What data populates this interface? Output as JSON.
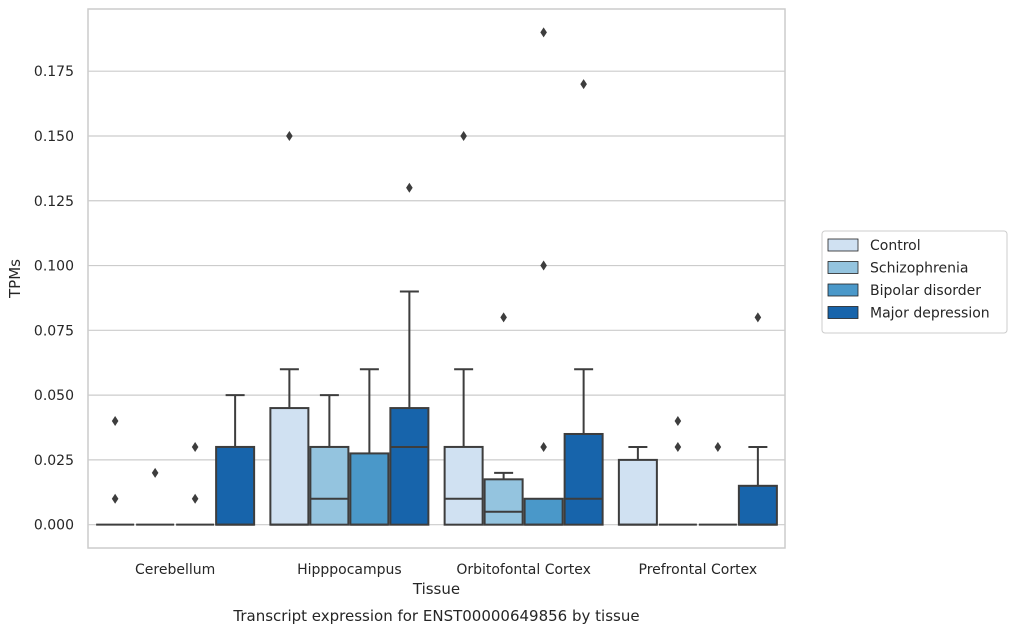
{
  "chart_data": {
    "type": "box",
    "title": "Transcript expression for ENST00000649856 by tissue",
    "xlabel": "Tissue",
    "ylabel": "TPMs",
    "ylim": [
      -0.009,
      0.199
    ],
    "yticks": [
      0.0,
      0.025,
      0.05,
      0.075,
      0.1,
      0.125,
      0.15,
      0.175
    ],
    "ytick_labels": [
      "0.000",
      "0.025",
      "0.050",
      "0.075",
      "0.100",
      "0.125",
      "0.150",
      "0.175"
    ],
    "grid": "horizontal",
    "legend_position": "right",
    "categories": [
      "Cerebellum",
      "Hipppocampus",
      "Orbitofontal Cortex",
      "Prefrontal Cortex"
    ],
    "series": [
      {
        "name": "Control",
        "color": "#d0e1f2",
        "boxes": [
          {
            "q1": 0,
            "median": 0,
            "q3": 0,
            "whisker_low": 0,
            "whisker_high": 0,
            "outliers": [
              0.01,
              0.04
            ]
          },
          {
            "q1": 0,
            "median": 0,
            "q3": 0.045,
            "whisker_low": 0,
            "whisker_high": 0.06,
            "outliers": [
              0.15
            ]
          },
          {
            "q1": 0,
            "median": 0.01,
            "q3": 0.03,
            "whisker_low": 0,
            "whisker_high": 0.06,
            "outliers": [
              0.15
            ]
          },
          {
            "q1": 0,
            "median": 0,
            "q3": 0.025,
            "whisker_low": 0,
            "whisker_high": 0.03,
            "outliers": []
          }
        ]
      },
      {
        "name": "Schizophrenia",
        "color": "#94c4df",
        "boxes": [
          {
            "q1": 0,
            "median": 0,
            "q3": 0,
            "whisker_low": 0,
            "whisker_high": 0,
            "outliers": [
              0.02
            ]
          },
          {
            "q1": 0,
            "median": 0.01,
            "q3": 0.03,
            "whisker_low": 0,
            "whisker_high": 0.05,
            "outliers": []
          },
          {
            "q1": 0,
            "median": 0.005,
            "q3": 0.0175,
            "whisker_low": 0,
            "whisker_high": 0.02,
            "outliers": [
              0.08
            ]
          },
          {
            "q1": 0,
            "median": 0,
            "q3": 0,
            "whisker_low": 0,
            "whisker_high": 0,
            "outliers": [
              0.03,
              0.04
            ]
          }
        ]
      },
      {
        "name": "Bipolar disorder",
        "color": "#4a98c9",
        "boxes": [
          {
            "q1": 0,
            "median": 0,
            "q3": 0,
            "whisker_low": 0,
            "whisker_high": 0,
            "outliers": [
              0.01,
              0.03
            ]
          },
          {
            "q1": 0,
            "median": 0,
            "q3": 0.0275,
            "whisker_low": 0,
            "whisker_high": 0.06,
            "outliers": []
          },
          {
            "q1": 0,
            "median": 0,
            "q3": 0.01,
            "whisker_low": 0,
            "whisker_high": 0.01,
            "outliers": [
              0.03,
              0.1,
              0.19
            ]
          },
          {
            "q1": 0,
            "median": 0,
            "q3": 0,
            "whisker_low": 0,
            "whisker_high": 0,
            "outliers": [
              0.03
            ]
          }
        ]
      },
      {
        "name": "Major depression",
        "color": "#1764ab",
        "boxes": [
          {
            "q1": 0,
            "median": 0,
            "q3": 0.03,
            "whisker_low": 0,
            "whisker_high": 0.05,
            "outliers": []
          },
          {
            "q1": 0,
            "median": 0.03,
            "q3": 0.045,
            "whisker_low": 0,
            "whisker_high": 0.09,
            "outliers": [
              0.13
            ]
          },
          {
            "q1": 0,
            "median": 0.01,
            "q3": 0.035,
            "whisker_low": 0,
            "whisker_high": 0.06,
            "outliers": [
              0.17
            ]
          },
          {
            "q1": 0,
            "median": 0,
            "q3": 0.015,
            "whisker_low": 0,
            "whisker_high": 0.03,
            "outliers": [
              0.08
            ]
          }
        ]
      }
    ]
  }
}
